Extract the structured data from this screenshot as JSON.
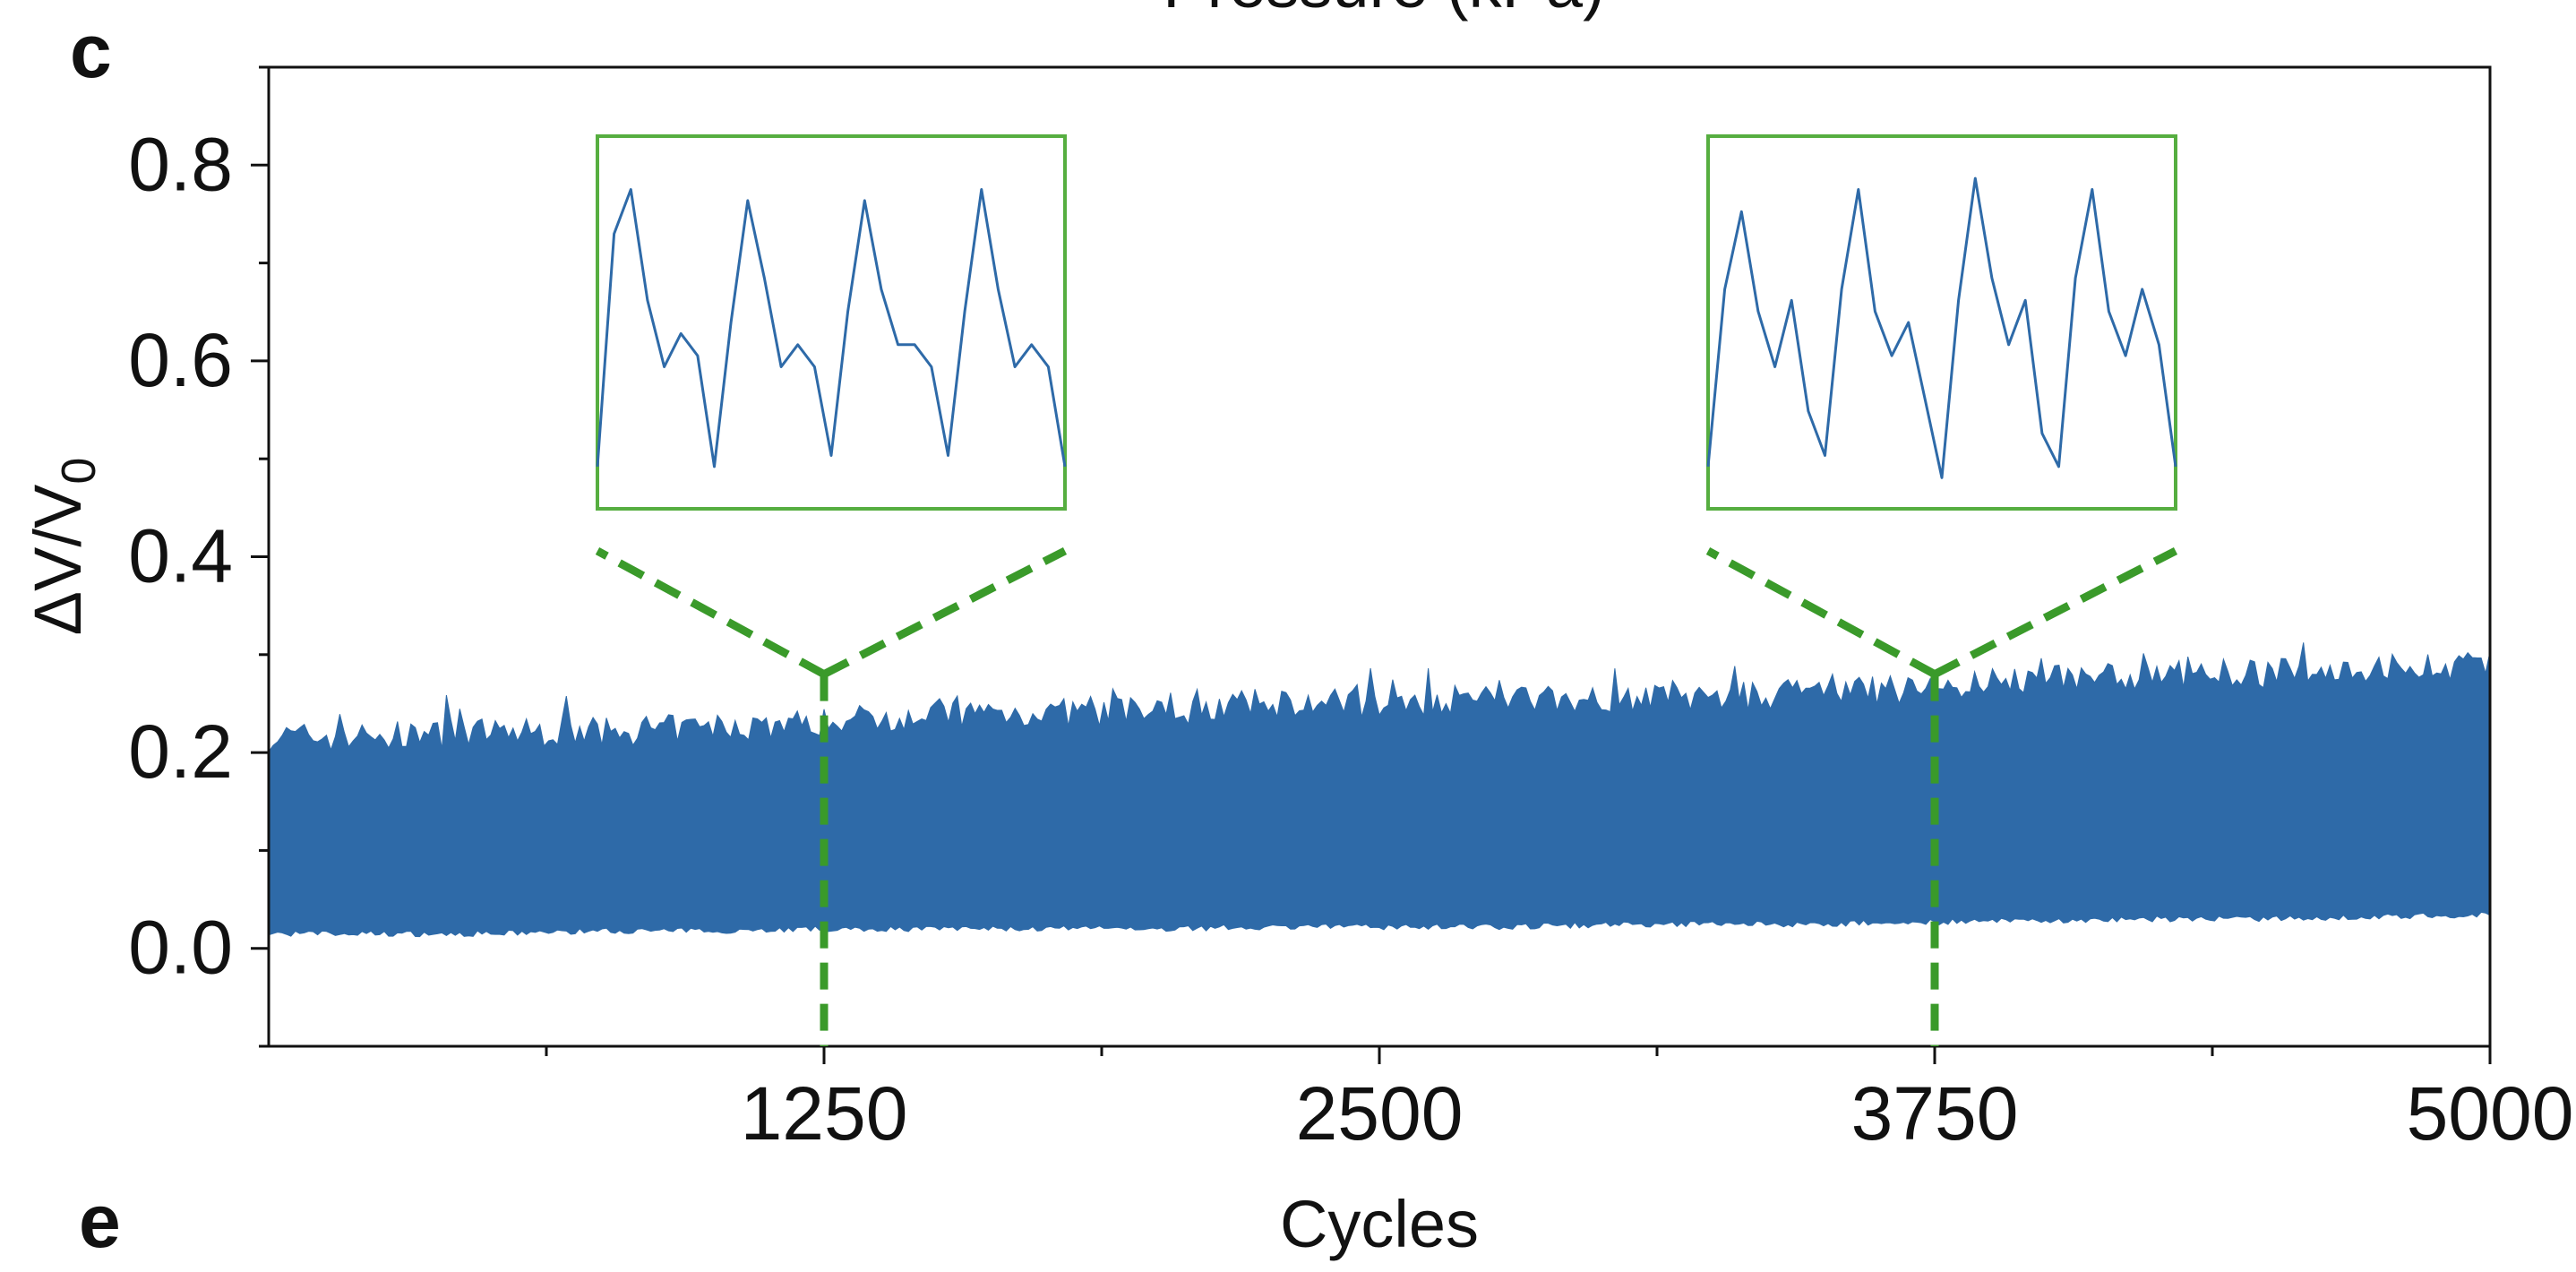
{
  "panel_labels": [
    "c",
    "e"
  ],
  "top_cut_text": "Pressure (kPa)",
  "colors": {
    "signal": "#2e6aa8",
    "inset": "#56ae40",
    "guide": "#3a9a2a",
    "axis": "#111111"
  },
  "chart_data": {
    "type": "area",
    "xlabel": "Cycles",
    "ylabel": "ΔV/V",
    "ylabel_subscript": "0",
    "xlim": [
      0,
      5000
    ],
    "ylim": [
      -0.1,
      0.9
    ],
    "xticks": [
      1250,
      2500,
      3750,
      5000
    ],
    "xtick_labels": [
      "1250",
      "2500",
      "3750",
      "5000"
    ],
    "yticks": [
      0.0,
      0.2,
      0.4,
      0.6,
      0.8
    ],
    "ytick_labels": [
      "0.0",
      "0.2",
      "0.4",
      "0.6",
      "0.8"
    ],
    "grid": false,
    "series": [
      {
        "x": [
          0,
          250,
          500,
          750,
          1000,
          1250,
          1500,
          1750,
          2000,
          2250,
          2500,
          2750,
          3000,
          3250,
          3500,
          3750,
          4000,
          4250,
          4500,
          4750,
          5000
        ],
        "upper": [
          0.21,
          0.21,
          0.215,
          0.215,
          0.22,
          0.225,
          0.235,
          0.235,
          0.235,
          0.245,
          0.245,
          0.25,
          0.25,
          0.25,
          0.255,
          0.26,
          0.27,
          0.275,
          0.275,
          0.28,
          0.285
        ],
        "lower": [
          0.015,
          0.015,
          0.015,
          0.018,
          0.018,
          0.02,
          0.02,
          0.02,
          0.02,
          0.022,
          0.022,
          0.022,
          0.024,
          0.025,
          0.025,
          0.027,
          0.028,
          0.03,
          0.03,
          0.032,
          0.035
        ]
      }
    ],
    "zoom_markers_x": [
      1250,
      3750
    ],
    "insets": [
      {
        "at_x": 1250,
        "y": [
          0.49,
          0.7,
          0.74,
          0.64,
          0.58,
          0.61,
          0.59,
          0.49,
          0.62,
          0.73,
          0.66,
          0.58,
          0.6,
          0.58,
          0.5,
          0.63,
          0.73,
          0.65,
          0.6,
          0.6,
          0.58,
          0.5,
          0.63,
          0.74,
          0.65,
          0.58,
          0.6,
          0.58,
          0.49
        ]
      },
      {
        "at_x": 3750,
        "y": [
          0.49,
          0.65,
          0.72,
          0.63,
          0.58,
          0.64,
          0.54,
          0.5,
          0.65,
          0.74,
          0.63,
          0.59,
          0.62,
          0.55,
          0.48,
          0.64,
          0.75,
          0.66,
          0.6,
          0.64,
          0.52,
          0.49,
          0.66,
          0.74,
          0.63,
          0.59,
          0.65,
          0.6,
          0.49
        ]
      }
    ]
  }
}
